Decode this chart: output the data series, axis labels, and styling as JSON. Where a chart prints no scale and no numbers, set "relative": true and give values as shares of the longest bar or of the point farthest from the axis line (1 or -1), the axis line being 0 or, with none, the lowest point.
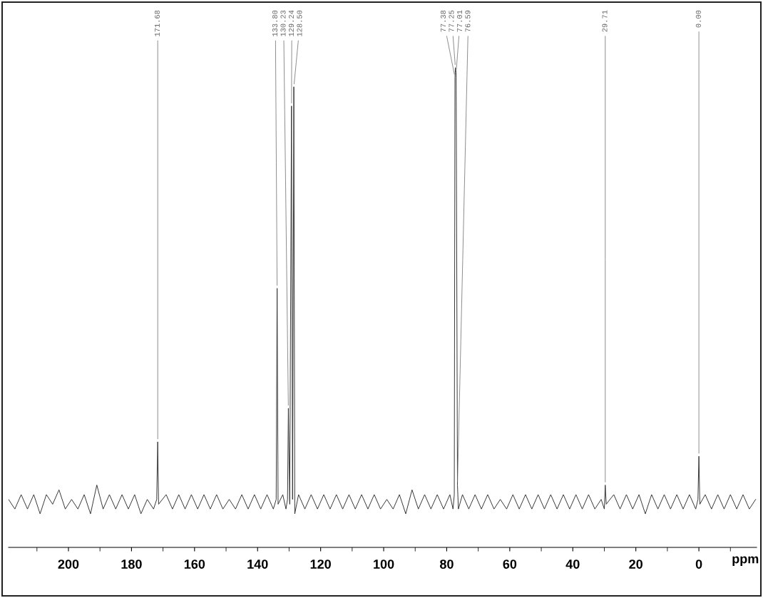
{
  "chart_data": {
    "type": "line",
    "relative": true,
    "xlabel": "ppm",
    "xlim": [
      219,
      -18.3
    ],
    "xticks": [
      {
        "value": 210,
        "label": null
      },
      200,
      {
        "value": 190,
        "label": null
      },
      180,
      {
        "value": 170,
        "label": null
      },
      160,
      {
        "value": 150,
        "label": null
      },
      140,
      {
        "value": 130,
        "label": null
      },
      120,
      {
        "value": 110,
        "label": null
      },
      100,
      {
        "value": 90,
        "label": null
      },
      80,
      {
        "value": 70,
        "label": null
      },
      60,
      {
        "value": 50,
        "label": null
      },
      40,
      {
        "value": 30,
        "label": null
      },
      20,
      {
        "value": 10,
        "label": null
      },
      0,
      {
        "value": -10,
        "label": null
      }
    ],
    "grid": false,
    "legend": false,
    "marker": "none",
    "line_style": "solid",
    "tick_labels": "x",
    "series": [
      {
        "color": "#333333",
        "x": [
          219,
          217,
          215,
          213,
          211,
          209,
          207,
          205,
          203,
          201,
          199,
          197,
          195,
          193,
          191,
          189,
          187,
          185,
          183,
          181,
          179,
          177,
          175,
          173,
          172.0,
          171.68,
          171.4,
          169,
          167,
          165,
          163,
          161,
          159,
          157,
          155,
          153,
          151,
          149,
          147,
          145,
          143,
          141,
          139,
          137,
          135,
          134.1,
          133.8,
          133.5,
          132,
          131,
          130.5,
          130.23,
          129.8,
          129.24,
          128.9,
          128.5,
          128.2,
          127,
          125,
          123,
          121,
          119,
          117,
          115,
          113,
          111,
          109,
          107,
          105,
          103,
          101,
          99,
          97,
          95,
          93,
          91,
          89,
          87,
          85,
          83,
          81,
          79,
          78,
          77.6,
          77.38,
          77.25,
          77.01,
          76.59,
          76.3,
          75,
          73,
          71,
          69,
          67,
          65,
          63,
          61,
          59,
          57,
          55,
          53,
          51,
          49,
          47,
          45,
          43,
          41,
          39,
          37,
          35,
          33,
          31,
          30,
          29.71,
          29.4,
          27,
          25,
          23,
          21,
          19,
          17,
          15,
          13,
          11,
          9,
          7,
          5,
          3,
          1,
          0.3,
          0.0,
          -0.3,
          -2,
          -4,
          -6,
          -8,
          -10,
          -12,
          -14,
          -16,
          -18
        ],
        "values": [
          0.1,
          0.08,
          0.11,
          0.08,
          0.11,
          0.07,
          0.11,
          0.09,
          0.12,
          0.08,
          0.1,
          0.08,
          0.11,
          0.07,
          0.13,
          0.08,
          0.11,
          0.08,
          0.11,
          0.08,
          0.11,
          0.07,
          0.1,
          0.08,
          0.1,
          0.22,
          0.09,
          0.11,
          0.08,
          0.11,
          0.08,
          0.11,
          0.08,
          0.11,
          0.08,
          0.11,
          0.08,
          0.1,
          0.08,
          0.11,
          0.08,
          0.11,
          0.08,
          0.11,
          0.08,
          0.1,
          0.54,
          0.09,
          0.11,
          0.08,
          0.1,
          0.29,
          0.09,
          0.92,
          0.1,
          0.96,
          0.07,
          0.11,
          0.08,
          0.11,
          0.08,
          0.11,
          0.08,
          0.11,
          0.08,
          0.11,
          0.08,
          0.11,
          0.08,
          0.11,
          0.08,
          0.1,
          0.08,
          0.11,
          0.07,
          0.12,
          0.08,
          0.11,
          0.08,
          0.11,
          0.08,
          0.11,
          0.08,
          0.11,
          0.98,
          1.0,
          0.99,
          0.13,
          0.08,
          0.11,
          0.08,
          0.11,
          0.08,
          0.11,
          0.08,
          0.1,
          0.08,
          0.11,
          0.08,
          0.11,
          0.08,
          0.11,
          0.08,
          0.11,
          0.08,
          0.11,
          0.08,
          0.11,
          0.08,
          0.11,
          0.08,
          0.1,
          0.08,
          0.13,
          0.09,
          0.11,
          0.08,
          0.11,
          0.08,
          0.11,
          0.07,
          0.11,
          0.08,
          0.11,
          0.08,
          0.11,
          0.08,
          0.11,
          0.08,
          0.1,
          0.19,
          0.09,
          0.11,
          0.08,
          0.11,
          0.08,
          0.11,
          0.08,
          0.11,
          0.08,
          0.1
        ]
      }
    ],
    "annotations": [
      {
        "text": "171.68",
        "x": 171.68,
        "y": 0.22
      },
      {
        "text": "133.80",
        "x": 133.8,
        "y": 0.54
      },
      {
        "text": "130.23",
        "x": 130.23,
        "y": 0.29
      },
      {
        "text": "129.24",
        "x": 129.24,
        "y": 0.92
      },
      {
        "text": "128.50",
        "x": 128.5,
        "y": 0.96
      },
      {
        "text": "77.38",
        "x": 77.38,
        "y": 0.98
      },
      {
        "text": "77.25",
        "x": 77.25,
        "y": 1.0
      },
      {
        "text": "77.01",
        "x": 77.01,
        "y": 0.99
      },
      {
        "text": "76.59",
        "x": 76.59,
        "y": 0.13
      },
      {
        "text": "29.71",
        "x": 29.71,
        "y": 0.13
      },
      {
        "text": "0.00",
        "x": 0.0,
        "y": 0.19
      }
    ]
  }
}
